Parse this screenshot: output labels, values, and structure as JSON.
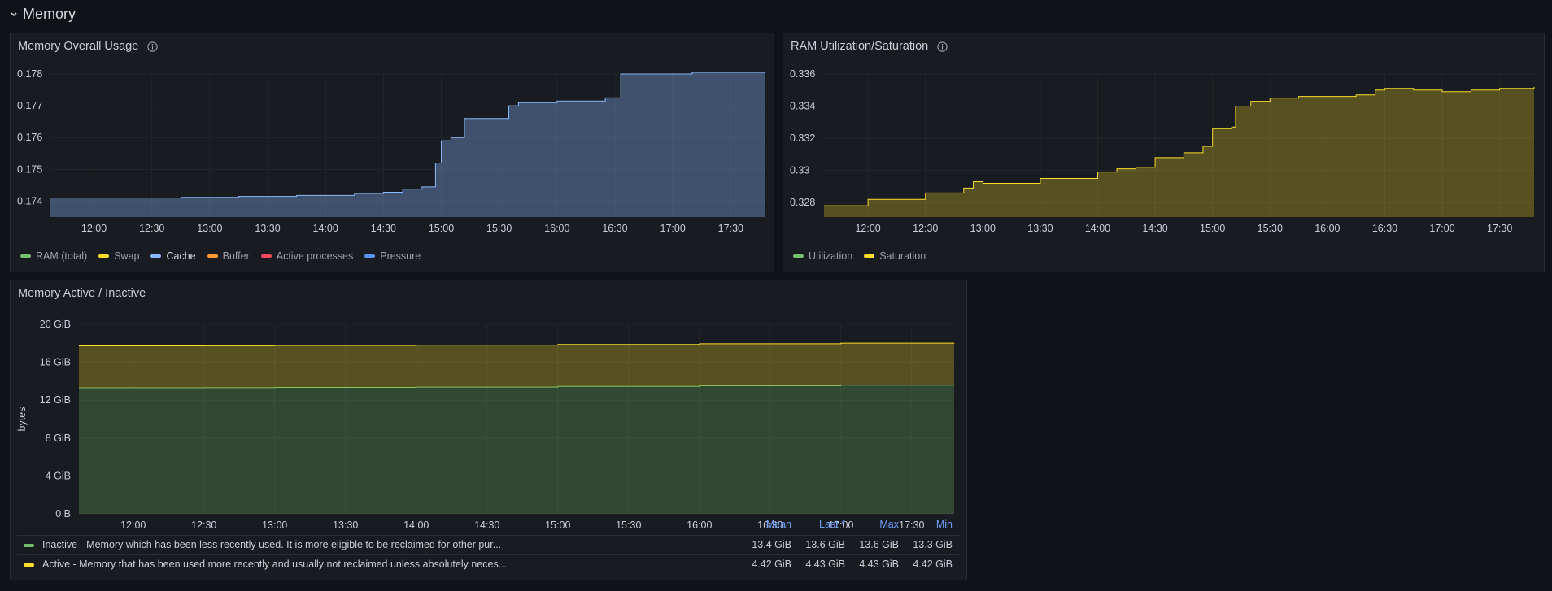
{
  "row": {
    "title": "Memory"
  },
  "colors": {
    "green": "#73bf69",
    "yellow": "#fade2a",
    "light_blue": "#8ab8ff",
    "orange": "#ff9830",
    "red": "#f2495c",
    "blue": "#5794f2",
    "link_blue": "#6e9fff"
  },
  "icons": {
    "row_toggle": "chevron-down-icon",
    "panel_info": "info-circle-icon"
  },
  "panels": {
    "overall": {
      "title": "Memory Overall Usage",
      "legend": [
        {
          "label": "RAM (total)",
          "color": "#73bf69",
          "active": false
        },
        {
          "label": "Swap",
          "color": "#fade2a",
          "active": false
        },
        {
          "label": "Cache",
          "color": "#8ab8ff",
          "active": true
        },
        {
          "label": "Buffer",
          "color": "#ff9830",
          "active": false
        },
        {
          "label": "Active processes",
          "color": "#f2495c",
          "active": false
        },
        {
          "label": "Pressure",
          "color": "#5794f2",
          "active": false
        }
      ]
    },
    "ram": {
      "title": "RAM Utilization/Saturation",
      "legend": [
        {
          "label": "Utilization",
          "color": "#73bf69",
          "active": false
        },
        {
          "label": "Saturation",
          "color": "#fade2a",
          "active": false
        }
      ]
    },
    "active": {
      "title": "Memory Active / Inactive",
      "table_headers": [
        "Mean",
        "Last *",
        "Max",
        "Min"
      ],
      "rows": [
        {
          "name": "Inactive - Memory which has been less recently used. It is more eligible to be reclaimed for other pur...",
          "color": "#73bf69",
          "mean": "13.4 GiB",
          "last": "13.6 GiB",
          "max": "13.6 GiB",
          "min": "13.3 GiB"
        },
        {
          "name": "Active - Memory that has been used more recently and usually not reclaimed unless absolutely neces...",
          "color": "#fade2a",
          "mean": "4.42 GiB",
          "last": "4.43 GiB",
          "max": "4.43 GiB",
          "min": "4.42 GiB"
        }
      ]
    }
  },
  "chart_data": [
    {
      "type": "area",
      "title": "Memory Overall Usage",
      "x_ticks": [
        "12:00",
        "12:30",
        "13:00",
        "13:30",
        "14:00",
        "14:30",
        "15:00",
        "15:30",
        "16:00",
        "16:30",
        "17:00",
        "17:30"
      ],
      "y_ticks": [
        "0.174",
        "0.175",
        "0.176",
        "0.177",
        "0.178"
      ],
      "ylim": [
        0.1735,
        0.178
      ],
      "xlim": [
        "11:37",
        "17:48"
      ],
      "grid": true,
      "legend_position": "bottom-left",
      "series": [
        {
          "name": "Cache",
          "color": "#8ab8ff",
          "x": [
            "11:37",
            "12:15",
            "12:45",
            "13:15",
            "13:45",
            "14:15",
            "14:30",
            "14:40",
            "14:50",
            "14:55",
            "14:57",
            "15:00",
            "15:05",
            "15:10",
            "15:12",
            "15:20",
            "15:30",
            "15:35",
            "15:40",
            "15:50",
            "16:00",
            "16:15",
            "16:25",
            "16:30",
            "16:33",
            "16:45",
            "17:00",
            "17:10",
            "17:30",
            "17:48"
          ],
          "values": [
            0.1741,
            0.1741,
            0.17412,
            0.17415,
            0.17418,
            0.17424,
            0.17428,
            0.17438,
            0.17445,
            0.17445,
            0.1752,
            0.1759,
            0.176,
            0.176,
            0.1766,
            0.1766,
            0.1766,
            0.177,
            0.1771,
            0.1771,
            0.17715,
            0.17715,
            0.17725,
            0.17725,
            0.178,
            0.178,
            0.178,
            0.17805,
            0.17805,
            0.17808
          ]
        }
      ]
    },
    {
      "type": "area",
      "title": "RAM Utilization/Saturation",
      "x_ticks": [
        "12:00",
        "12:30",
        "13:00",
        "13:30",
        "14:00",
        "14:30",
        "15:00",
        "15:30",
        "16:00",
        "16:30",
        "17:00",
        "17:30"
      ],
      "y_ticks": [
        "0.328",
        "0.33",
        "0.332",
        "0.334",
        "0.336"
      ],
      "ylim": [
        0.3271,
        0.336
      ],
      "xlim": [
        "11:37",
        "17:48"
      ],
      "grid": true,
      "legend_position": "bottom-left",
      "series": [
        {
          "name": "Saturation",
          "color": "#fade2a",
          "x": [
            "11:37",
            "12:00",
            "12:30",
            "12:50",
            "12:55",
            "13:00",
            "13:30",
            "14:00",
            "14:10",
            "14:20",
            "14:30",
            "14:45",
            "14:55",
            "15:00",
            "15:10",
            "15:12",
            "15:20",
            "15:30",
            "15:45",
            "16:00",
            "16:15",
            "16:25",
            "16:30",
            "16:45",
            "17:00",
            "17:15",
            "17:30",
            "17:48"
          ],
          "values": [
            0.3278,
            0.3282,
            0.3286,
            0.3289,
            0.3293,
            0.3292,
            0.3295,
            0.3299,
            0.3301,
            0.3302,
            0.3308,
            0.3311,
            0.3315,
            0.3326,
            0.3327,
            0.334,
            0.3343,
            0.3345,
            0.3346,
            0.3346,
            0.3347,
            0.335,
            0.3351,
            0.335,
            0.3349,
            0.335,
            0.3351,
            0.3352
          ]
        }
      ]
    },
    {
      "type": "area",
      "title": "Memory Active / Inactive",
      "ylabel": "bytes",
      "x_ticks": [
        "12:00",
        "12:30",
        "13:00",
        "13:30",
        "14:00",
        "14:30",
        "15:00",
        "15:30",
        "16:00",
        "16:30",
        "17:00",
        "17:30"
      ],
      "y_ticks": [
        "0 B",
        "4 GiB",
        "8 GiB",
        "12 GiB",
        "16 GiB",
        "20 GiB"
      ],
      "ylim": [
        0,
        20
      ],
      "xlim": [
        "11:37",
        "17:48"
      ],
      "stacked": true,
      "grid": true,
      "legend_position": "bottom-table",
      "series": [
        {
          "name": "Inactive - Memory which has been less recently used. It is more eligible to be reclaimed for other pur...",
          "color": "#73bf69",
          "x": [
            "11:37",
            "12:30",
            "13:00",
            "14:00",
            "15:00",
            "16:00",
            "17:00",
            "17:48"
          ],
          "values": [
            13.3,
            13.32,
            13.35,
            13.38,
            13.45,
            13.52,
            13.58,
            13.6
          ]
        },
        {
          "name": "Active - Memory that has been used more recently and usually not reclaimed unless absolutely neces...",
          "color": "#fade2a",
          "x": [
            "11:37",
            "12:30",
            "13:00",
            "14:00",
            "15:00",
            "16:00",
            "17:00",
            "17:48"
          ],
          "values": [
            4.42,
            4.42,
            4.42,
            4.42,
            4.43,
            4.43,
            4.43,
            4.43
          ]
        }
      ]
    }
  ]
}
